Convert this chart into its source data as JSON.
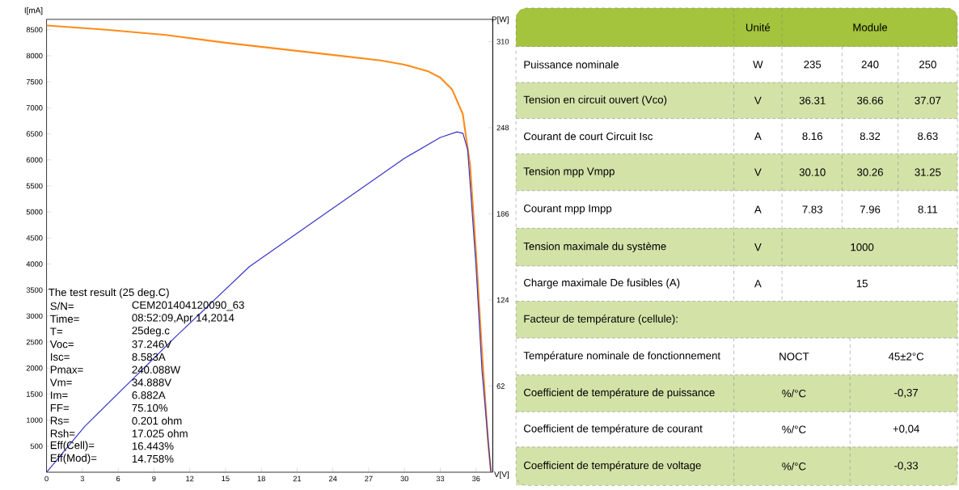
{
  "chart_data": [
    {
      "type": "line",
      "xlabel": "V[V]",
      "ylabel": "I[mA]",
      "y2label": "P[W]",
      "xlim": [
        0,
        37.4
      ],
      "xticks": [
        0,
        3,
        6,
        9,
        12,
        15,
        18,
        21,
        24,
        27,
        30,
        33,
        36
      ],
      "ylim": [
        0,
        8700
      ],
      "yticks": [
        500,
        1000,
        1500,
        2000,
        2500,
        3000,
        3500,
        4000,
        4500,
        5000,
        5500,
        6000,
        6500,
        7000,
        7500,
        8000,
        8500
      ],
      "y2lim": [
        0,
        326
      ],
      "y2ticks": [
        62,
        124,
        186,
        248,
        310
      ],
      "series": [
        {
          "color": "#ff8c1a",
          "x": [
            0,
            5,
            10,
            15,
            20,
            25,
            28,
            30,
            32,
            33,
            34,
            34.888,
            35.5,
            36,
            36.5,
            37,
            37.246
          ],
          "values": [
            8583,
            8500,
            8400,
            8250,
            8120,
            7990,
            7910,
            7830,
            7700,
            7580,
            7350,
            6882,
            5900,
            4200,
            2300,
            600,
            0
          ]
        },
        {
          "color": "#3535c8",
          "axis": "y2",
          "x": [
            0,
            3.2,
            11,
            17,
            24,
            30,
            33,
            34.4,
            34.9,
            35.3,
            36,
            36.5,
            37.246
          ],
          "values": [
            0,
            33,
            99,
            148,
            190,
            226,
            241,
            245,
            244,
            232,
            148,
            73,
            0
          ]
        }
      ],
      "annotations": [
        "The test result (25 deg.C)",
        "S/N=",
        "CEM201404120090_63",
        "Time=",
        "08:52:09,Apr 14,2014",
        "T=",
        "25deg.c",
        "Voc=",
        "37.246V",
        "Isc=",
        "8.583A",
        "Pmax=",
        "240.088W",
        "Vm=",
        "34.888V",
        "Im=",
        "6.882A",
        "FF=",
        "75.10%",
        "Rs=",
        "0.201 ohm",
        "Rsh=",
        "17.025 ohm",
        "Eff(Cell)=",
        "16.443%",
        "Eff(Mod)=",
        "14.758%"
      ]
    },
    {
      "type": "other",
      "annotations": [
        "Unité",
        "Module",
        "Puissance nominale",
        "W",
        "235",
        "240",
        "250",
        "Tension en circuit ouvert (Vco)",
        "V",
        "36.31",
        "36.66",
        "37.07",
        "Courant de court Circuit Isc",
        "A",
        "8.16",
        "8.32",
        "8.63",
        "Tension mpp Vmpp",
        "V",
        "30.10",
        "30.26",
        "31.25",
        "Courant mpp Impp",
        "A",
        "7.83",
        "7.96",
        "8.11",
        "Tension maximale du système",
        "V",
        "1000",
        "Charge maximale De fusibles (A)",
        "A",
        "15",
        "Facteur de température (cellule):",
        "Température nominale de fonctionnement",
        "NOCT",
        "45±2°C",
        "Coefficient de température de puissance",
        "%/°C",
        "-0,37",
        "Coefficient de température de courant",
        "%/°C",
        "+0,04",
        "Coefficient de température de voltage",
        "%/°C",
        "-0,33"
      ]
    }
  ]
}
